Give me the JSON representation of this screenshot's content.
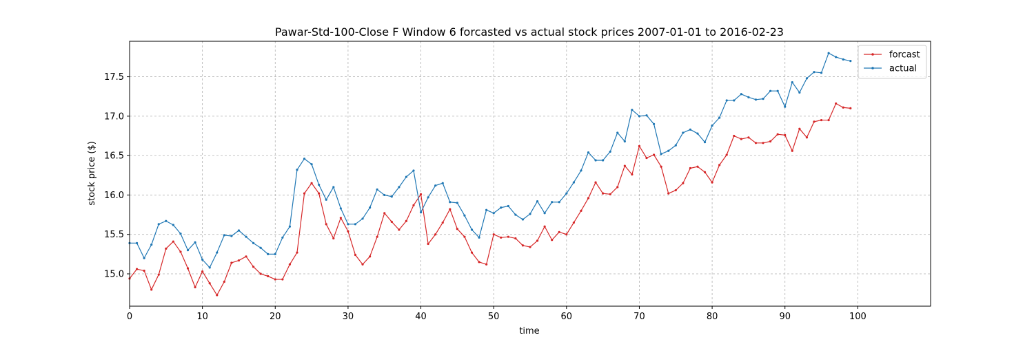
{
  "chart_data": {
    "type": "line",
    "title": "Pawar-Std-100-Close F Window 6 forcasted vs actual stock prices 2007-01-01 to 2016-02-23",
    "xlabel": "time",
    "ylabel": "stock price ($)",
    "xlim": [
      0,
      110
    ],
    "ylim": [
      14.59,
      17.95
    ],
    "xticks": [
      0,
      10,
      20,
      30,
      40,
      50,
      60,
      70,
      80,
      90,
      100
    ],
    "yticks": [
      15.0,
      15.5,
      16.0,
      16.5,
      17.0,
      17.5
    ],
    "ytick_labels": [
      "15.0",
      "15.5",
      "16.0",
      "16.5",
      "17.0",
      "17.5"
    ],
    "grid": true,
    "legend_position": "top-right",
    "series": [
      {
        "name": "forcast",
        "color": "#d62728",
        "values": [
          14.94,
          15.06,
          15.04,
          14.8,
          14.99,
          15.32,
          15.41,
          15.28,
          15.07,
          14.83,
          15.03,
          14.88,
          14.73,
          14.9,
          15.14,
          15.17,
          15.22,
          15.09,
          15.0,
          14.97,
          14.93,
          14.93,
          15.12,
          15.27,
          16.02,
          16.15,
          16.02,
          15.63,
          15.45,
          15.71,
          15.54,
          15.24,
          15.12,
          15.22,
          15.47,
          15.77,
          15.66,
          15.56,
          15.67,
          15.87,
          16.01,
          15.38,
          15.5,
          15.65,
          15.82,
          15.57,
          15.47,
          15.27,
          15.15,
          15.12,
          15.5,
          15.46,
          15.47,
          15.45,
          15.36,
          15.34,
          15.42,
          15.6,
          15.43,
          15.53,
          15.5,
          15.65,
          15.8,
          15.96,
          16.16,
          16.02,
          16.01,
          16.1,
          16.37,
          16.26,
          16.62,
          16.47,
          16.51,
          16.36,
          16.02,
          16.06,
          16.15,
          16.34,
          16.36,
          16.29,
          16.16,
          16.38,
          16.51,
          16.75,
          16.71,
          16.73,
          16.66,
          16.66,
          16.68,
          16.77,
          16.76,
          16.56,
          16.84,
          16.73,
          16.93,
          16.95,
          16.95,
          17.16,
          17.11,
          17.1
        ]
      },
      {
        "name": "actual",
        "color": "#1f77b4",
        "values": [
          15.39,
          15.39,
          15.2,
          15.37,
          15.63,
          15.67,
          15.62,
          15.51,
          15.3,
          15.4,
          15.18,
          15.08,
          15.27,
          15.49,
          15.48,
          15.55,
          15.47,
          15.39,
          15.33,
          15.25,
          15.25,
          15.46,
          15.6,
          16.32,
          16.46,
          16.39,
          16.13,
          15.94,
          16.1,
          15.83,
          15.63,
          15.63,
          15.7,
          15.84,
          16.07,
          16.0,
          15.98,
          16.1,
          16.23,
          16.31,
          15.78,
          15.97,
          16.12,
          16.15,
          15.91,
          15.9,
          15.74,
          15.56,
          15.46,
          15.81,
          15.77,
          15.84,
          15.86,
          15.75,
          15.69,
          15.76,
          15.92,
          15.77,
          15.91,
          15.91,
          16.02,
          16.16,
          16.31,
          16.54,
          16.44,
          16.44,
          16.55,
          16.79,
          16.68,
          17.08,
          17.0,
          17.01,
          16.9,
          16.52,
          16.56,
          16.63,
          16.79,
          16.83,
          16.78,
          16.67,
          16.88,
          16.98,
          17.2,
          17.2,
          17.28,
          17.24,
          17.21,
          17.22,
          17.32,
          17.32,
          17.12,
          17.43,
          17.3,
          17.48,
          17.56,
          17.55,
          17.8,
          17.75,
          17.72,
          17.7
        ]
      }
    ]
  }
}
